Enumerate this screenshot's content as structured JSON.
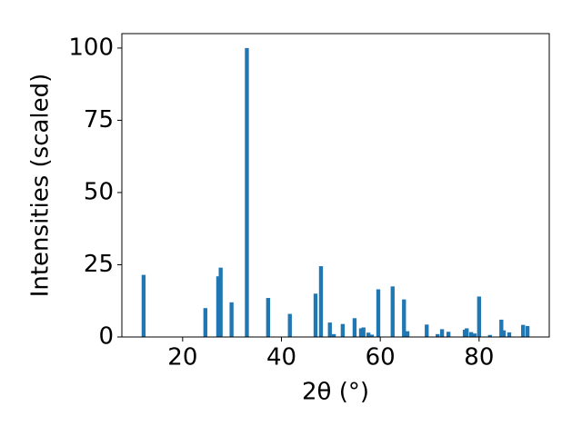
{
  "chart_data": {
    "type": "bar",
    "xlabel": "2θ (°)",
    "ylabel": "Intensities (scaled)",
    "color": "#1f77b4",
    "bar_width": 0.8,
    "x": [
      12.1,
      24.6,
      27.2,
      27.7,
      29.9,
      33.0,
      37.3,
      41.7,
      46.9,
      48.0,
      49.8,
      50.6,
      52.4,
      54.8,
      56.1,
      56.6,
      57.6,
      58.3,
      59.6,
      62.5,
      64.8,
      65.5,
      69.4,
      71.6,
      72.5,
      73.8,
      77.1,
      77.5,
      78.4,
      79.1,
      80.0,
      82.2,
      84.5,
      85.0,
      86.1,
      88.9,
      89.8
    ],
    "values": [
      21.5,
      10,
      21,
      24,
      12,
      100,
      13.5,
      8,
      15,
      24.5,
      5,
      1,
      4.5,
      6.5,
      3,
      3.3,
      1.5,
      0.8,
      16.5,
      17.5,
      13,
      2,
      4.3,
      1,
      2.7,
      1.8,
      2.5,
      3,
      1.7,
      1.2,
      14,
      0.7,
      6,
      2.3,
      1.6,
      4.2,
      3.8
    ],
    "xlim": [
      7.7,
      94.2
    ],
    "xticks": [
      20,
      40,
      60,
      80
    ],
    "ylim": [
      0,
      105
    ],
    "yticks": [
      0,
      25,
      50,
      75,
      100
    ]
  }
}
